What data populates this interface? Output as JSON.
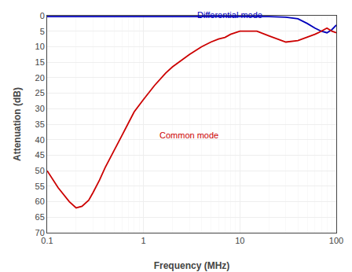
{
  "chart_data": {
    "type": "line",
    "xlabel": "Frequency (MHz)",
    "ylabel": "Attenuation (dB)",
    "log": "x",
    "grid": true,
    "xlim": [
      0.1,
      100
    ],
    "ylim": [
      70,
      0
    ],
    "xticks": [
      0.1,
      1,
      10,
      100
    ],
    "yticks": [
      0,
      5,
      10,
      15,
      20,
      25,
      30,
      35,
      40,
      45,
      50,
      55,
      60,
      65,
      70
    ],
    "series": [
      {
        "color": "#0000bb",
        "x": [
          0.1,
          0.2,
          0.5,
          1.0,
          2.0,
          5.0,
          10.0,
          20.0,
          30.0,
          40.0,
          50.0,
          60.0,
          70.0,
          80.0,
          90.0,
          100.0
        ],
        "values": [
          0.3,
          0.3,
          0.3,
          0.3,
          0.3,
          0.3,
          0.3,
          0.3,
          0.5,
          1.0,
          2.5,
          4.0,
          5.0,
          5.5,
          4.5,
          3.0
        ]
      },
      {
        "color": "#cc0000",
        "x": [
          0.1,
          0.13,
          0.17,
          0.2,
          0.23,
          0.27,
          0.3,
          0.35,
          0.4,
          0.5,
          0.6,
          0.7,
          0.8,
          1.0,
          1.3,
          1.7,
          2.0,
          3.0,
          4.0,
          5.0,
          6.0,
          7.0,
          8.0,
          10.0,
          15.0,
          20.0,
          30.0,
          40.0,
          50.0,
          55.0,
          60.0,
          65.0,
          70.0,
          75.0,
          80.0,
          90.0,
          100.0
        ],
        "values": [
          50.0,
          55.5,
          60.0,
          62.0,
          61.5,
          59.5,
          57.0,
          53.0,
          49.0,
          43.0,
          38.5,
          34.5,
          31.0,
          27.0,
          22.5,
          18.5,
          16.5,
          12.5,
          10.0,
          8.5,
          7.5,
          7.0,
          6.0,
          5.0,
          5.0,
          6.5,
          8.5,
          8.0,
          7.0,
          6.5,
          6.0,
          5.5,
          5.0,
          4.5,
          4.0,
          5.0,
          5.5
        ]
      }
    ],
    "annotations": [
      {
        "text": "Differential mode",
        "x": 3.5,
        "y": 1.8,
        "color": "#0000bb"
      },
      {
        "text": "Common mode",
        "x": 1.4,
        "y": 40.5,
        "color": "#cc0000"
      }
    ]
  }
}
